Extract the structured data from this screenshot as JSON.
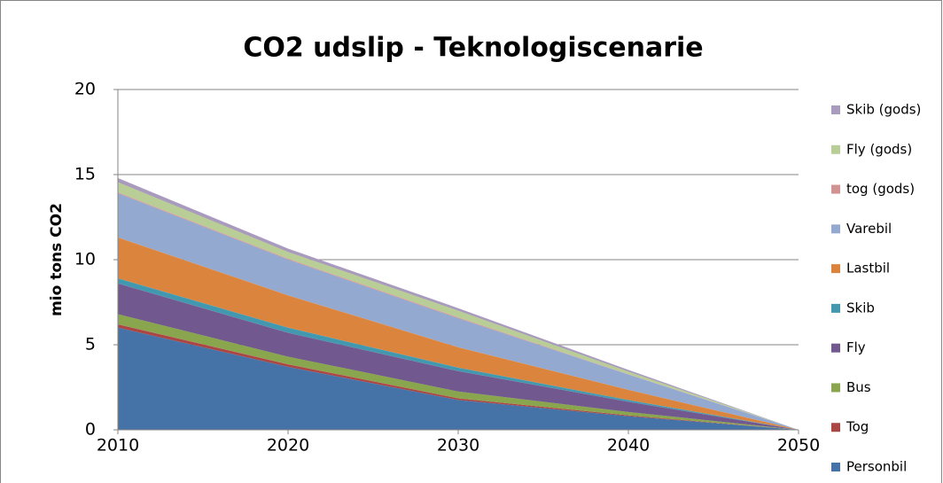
{
  "chart_data": {
    "type": "stacked_area",
    "title": "CO2 udslip - Teknologiscenarie",
    "y_label": "mio tons CO2",
    "x": [
      2010,
      2020,
      2030,
      2040,
      2050
    ],
    "xlim": [
      2010,
      2050
    ],
    "xticks": [
      2010,
      2020,
      2030,
      2040,
      2050
    ],
    "ylim": [
      0,
      20
    ],
    "yticks": [
      0,
      5,
      10,
      15,
      20
    ],
    "grid": true,
    "legend": "right",
    "series": [
      {
        "name": "Personbil",
        "color": "#4572A7",
        "values": [
          6.0,
          3.7,
          1.75,
          0.8,
          0
        ]
      },
      {
        "name": "Tog",
        "color": "#AA4643",
        "values": [
          0.2,
          0.15,
          0.1,
          0.05,
          0
        ]
      },
      {
        "name": "Bus",
        "color": "#89A54E",
        "values": [
          0.6,
          0.45,
          0.4,
          0.2,
          0
        ]
      },
      {
        "name": "Fly",
        "color": "#71588F",
        "values": [
          1.8,
          1.4,
          1.2,
          0.6,
          0
        ]
      },
      {
        "name": "Skib",
        "color": "#4198AF",
        "values": [
          0.3,
          0.3,
          0.2,
          0.1,
          0
        ]
      },
      {
        "name": "Lastbil",
        "color": "#DB843D",
        "values": [
          2.4,
          1.9,
          1.2,
          0.6,
          0
        ]
      },
      {
        "name": "Varebil",
        "color": "#93A9CF",
        "values": [
          2.6,
          2.1,
          1.7,
          0.9,
          0
        ]
      },
      {
        "name": "tog (gods)",
        "color": "#D19392",
        "values": [
          0.05,
          0.05,
          0.05,
          0.02,
          0
        ]
      },
      {
        "name": "Fly (gods)",
        "color": "#B9CD96",
        "values": [
          0.6,
          0.4,
          0.4,
          0.15,
          0
        ]
      },
      {
        "name": "Skib (gods)",
        "color": "#A99BBD",
        "values": [
          0.25,
          0.2,
          0.15,
          0.1,
          0
        ]
      }
    ]
  }
}
